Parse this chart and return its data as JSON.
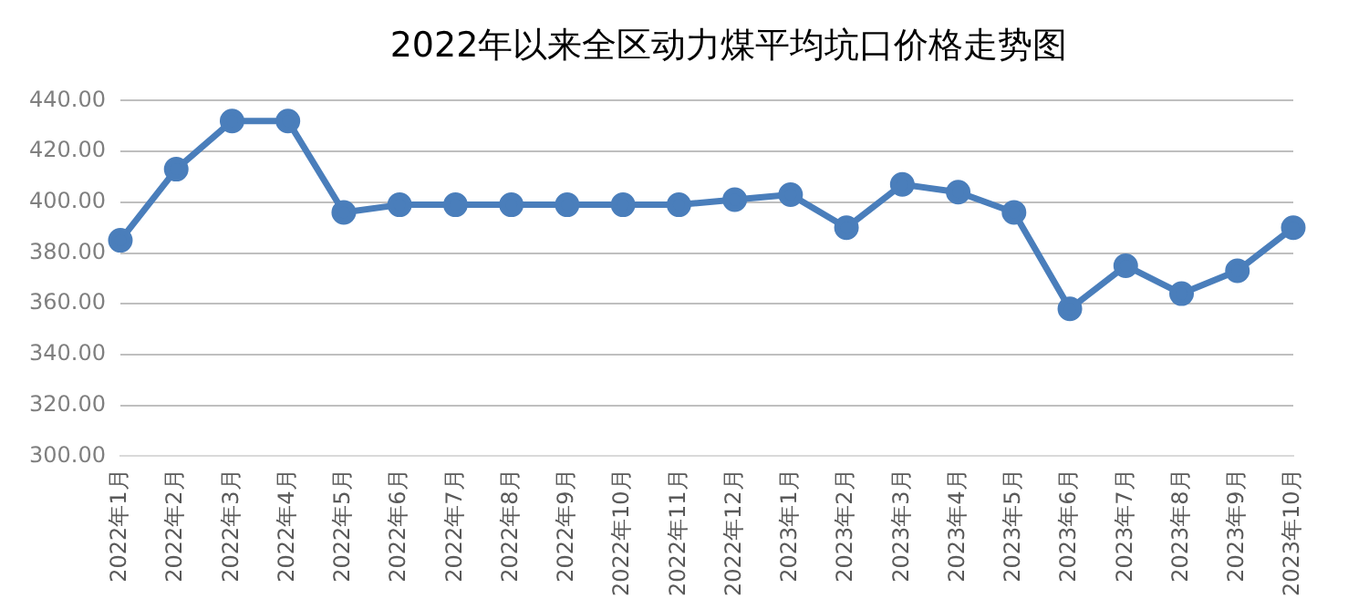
{
  "chart_data": {
    "type": "line",
    "title": "2022年以来全区动力煤平均坑口价格走势图",
    "categories": [
      "2022年1月",
      "2022年2月",
      "2022年3月",
      "2022年4月",
      "2022年5月",
      "2022年6月",
      "2022年7月",
      "2022年8月",
      "2022年9月",
      "2022年10月",
      "2022年11月",
      "2022年12月",
      "2023年1月",
      "2023年2月",
      "2023年3月",
      "2023年4月",
      "2023年5月",
      "2023年6月",
      "2023年7月",
      "2023年8月",
      "2023年9月",
      "2023年10月"
    ],
    "series": [
      {
        "color": "#4a7ebb",
        "values": [
          385,
          413,
          432,
          432,
          396,
          399,
          399,
          399,
          399,
          399,
          399,
          401,
          403,
          390,
          407,
          404,
          396,
          358,
          375,
          364,
          373,
          390
        ]
      }
    ],
    "ylim": [
      300,
      440
    ],
    "yticks": [
      {
        "value": 300,
        "label": "300.00"
      },
      {
        "value": 320,
        "label": "320.00"
      },
      {
        "value": 340,
        "label": "340.00"
      },
      {
        "value": 360,
        "label": "360.00"
      },
      {
        "value": 380,
        "label": "380.00"
      },
      {
        "value": 400,
        "label": "400.00"
      },
      {
        "value": 420,
        "label": "420.00"
      },
      {
        "value": 440,
        "label": "440.00"
      }
    ],
    "grid": "y",
    "legend": false,
    "marker": "circle",
    "line_style": "solid"
  }
}
